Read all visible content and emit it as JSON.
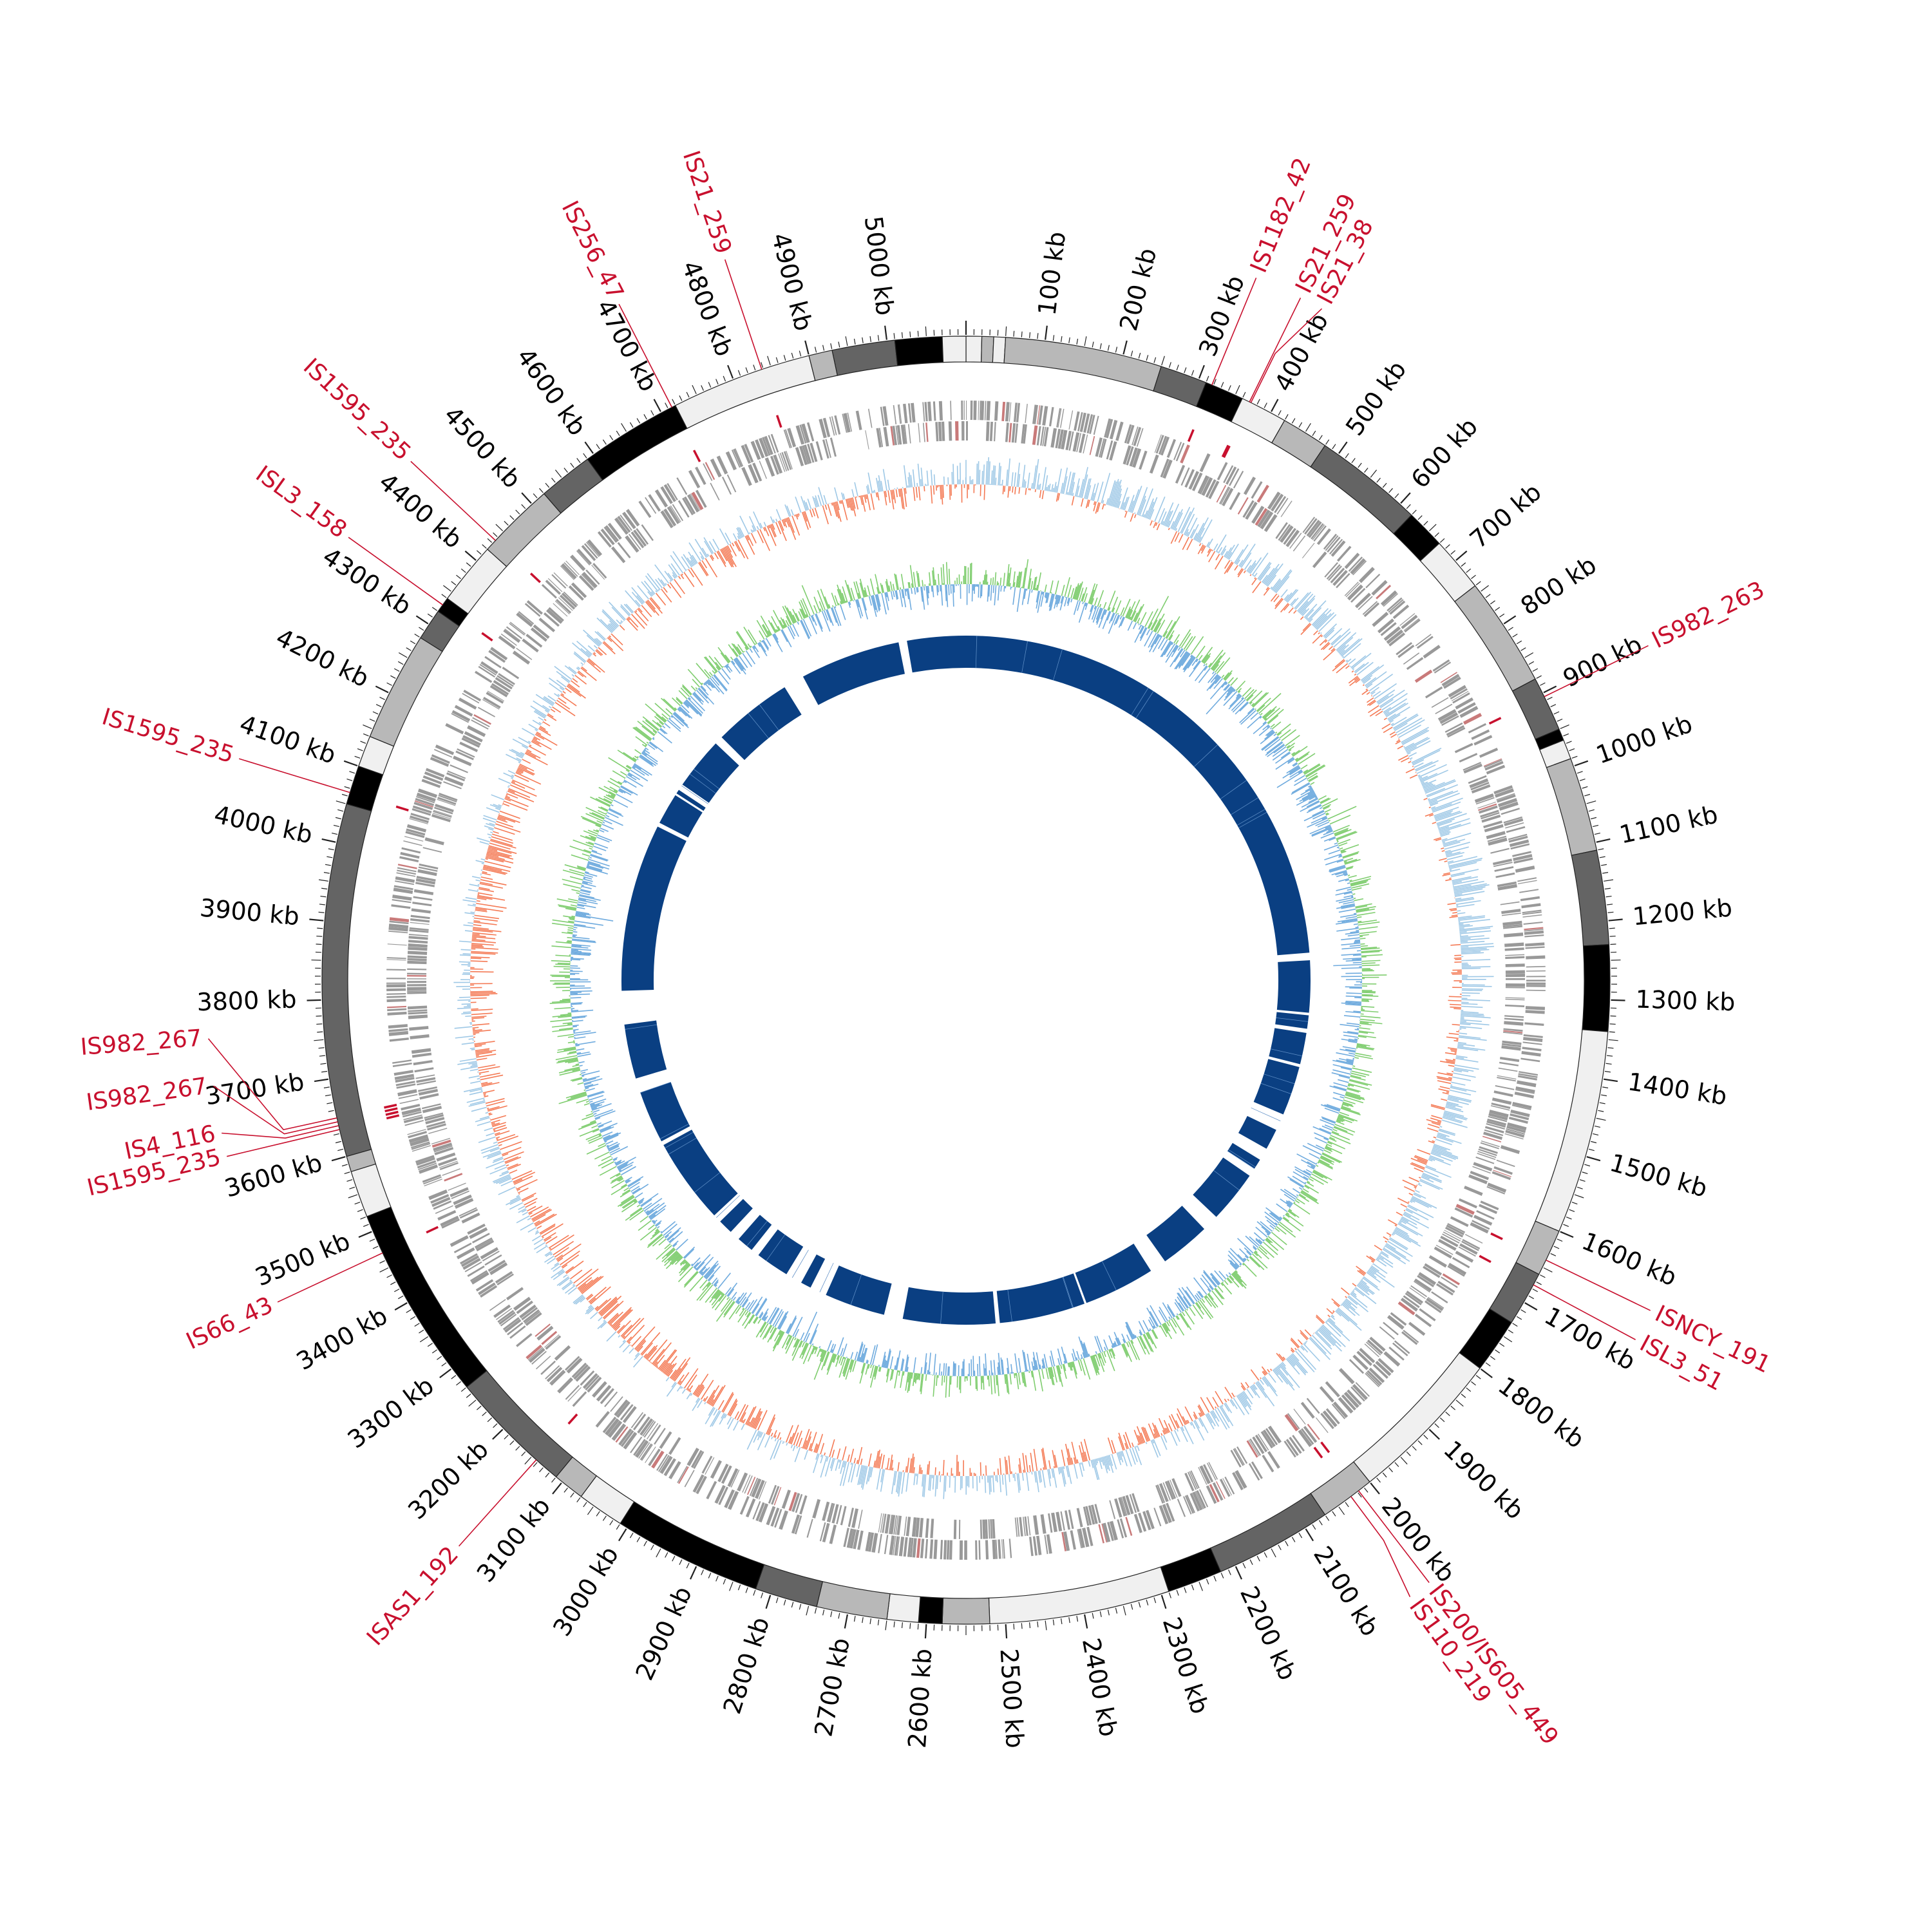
{
  "genome": {
    "total_kb": 5100,
    "scale_labels": [
      "100 kb",
      "200 kb",
      "300 kb",
      "400 kb",
      "500 kb",
      "600 kb",
      "700 kb",
      "800 kb",
      "900 kb",
      "1000 kb",
      "1100 kb",
      "1200 kb",
      "1300 kb",
      "1400 kb",
      "1500 kb",
      "1600 kb",
      "1700 kb",
      "1800 kb",
      "1900 kb",
      "2000 kb",
      "2100 kb",
      "2200 kb",
      "2300 kb",
      "2400 kb",
      "2500 kb",
      "2600 kb",
      "2700 kb",
      "2800 kb",
      "2900 kb",
      "3000 kb",
      "3100 kb",
      "3200 kb",
      "3300 kb",
      "3400 kb",
      "3500 kb",
      "3600 kb",
      "3700 kb",
      "3800 kb",
      "3900 kb",
      "4000 kb",
      "4100 kb",
      "4200 kb",
      "4300 kb",
      "4400 kb",
      "4500 kb",
      "4600 kb",
      "4700 kb",
      "4800 kb",
      "4900 kb",
      "5000 kb"
    ],
    "ideogram_blocks": [
      {
        "start": 0,
        "end": 20,
        "shade": "#f0f0f0"
      },
      {
        "start": 20,
        "end": 35,
        "shade": "#b8b8b8"
      },
      {
        "start": 35,
        "end": 50,
        "shade": "#f0f0f0"
      },
      {
        "start": 50,
        "end": 250,
        "shade": "#b8b8b8"
      },
      {
        "start": 250,
        "end": 310,
        "shade": "#646464"
      },
      {
        "start": 310,
        "end": 360,
        "shade": "#000000"
      },
      {
        "start": 360,
        "end": 420,
        "shade": "#f0f0f0"
      },
      {
        "start": 420,
        "end": 480,
        "shade": "#b8b8b8"
      },
      {
        "start": 480,
        "end": 620,
        "shade": "#646464"
      },
      {
        "start": 620,
        "end": 670,
        "shade": "#000000"
      },
      {
        "start": 670,
        "end": 740,
        "shade": "#f0f0f0"
      },
      {
        "start": 740,
        "end": 880,
        "shade": "#b8b8b8"
      },
      {
        "start": 880,
        "end": 950,
        "shade": "#646464"
      },
      {
        "start": 950,
        "end": 965,
        "shade": "#000000"
      },
      {
        "start": 965,
        "end": 990,
        "shade": "#f0f0f0"
      },
      {
        "start": 990,
        "end": 1110,
        "shade": "#b8b8b8"
      },
      {
        "start": 1110,
        "end": 1230,
        "shade": "#646464"
      },
      {
        "start": 1230,
        "end": 1340,
        "shade": "#000000"
      },
      {
        "start": 1340,
        "end": 1600,
        "shade": "#f0f0f0"
      },
      {
        "start": 1600,
        "end": 1660,
        "shade": "#b8b8b8"
      },
      {
        "start": 1660,
        "end": 1730,
        "shade": "#646464"
      },
      {
        "start": 1730,
        "end": 1800,
        "shade": "#000000"
      },
      {
        "start": 1800,
        "end": 2000,
        "shade": "#f0f0f0"
      },
      {
        "start": 2000,
        "end": 2070,
        "shade": "#b8b8b8"
      },
      {
        "start": 2070,
        "end": 2220,
        "shade": "#646464"
      },
      {
        "start": 2220,
        "end": 2290,
        "shade": "#000000"
      },
      {
        "start": 2290,
        "end": 2520,
        "shade": "#f0f0f0"
      },
      {
        "start": 2520,
        "end": 2580,
        "shade": "#b8b8b8"
      },
      {
        "start": 2580,
        "end": 2610,
        "shade": "#000000"
      },
      {
        "start": 2610,
        "end": 2650,
        "shade": "#f0f0f0"
      },
      {
        "start": 2650,
        "end": 2740,
        "shade": "#b8b8b8"
      },
      {
        "start": 2740,
        "end": 2820,
        "shade": "#646464"
      },
      {
        "start": 2820,
        "end": 3010,
        "shade": "#000000"
      },
      {
        "start": 3010,
        "end": 3070,
        "shade": "#f0f0f0"
      },
      {
        "start": 3070,
        "end": 3110,
        "shade": "#b8b8b8"
      },
      {
        "start": 3110,
        "end": 3270,
        "shade": "#646464"
      },
      {
        "start": 3270,
        "end": 3520,
        "shade": "#000000"
      },
      {
        "start": 3520,
        "end": 3580,
        "shade": "#f0f0f0"
      },
      {
        "start": 3580,
        "end": 3600,
        "shade": "#b8b8b8"
      },
      {
        "start": 3600,
        "end": 4050,
        "shade": "#646464"
      },
      {
        "start": 4050,
        "end": 4100,
        "shade": "#000000"
      },
      {
        "start": 4100,
        "end": 4140,
        "shade": "#f0f0f0"
      },
      {
        "start": 4140,
        "end": 4280,
        "shade": "#b8b8b8"
      },
      {
        "start": 4280,
        "end": 4320,
        "shade": "#646464"
      },
      {
        "start": 4320,
        "end": 4340,
        "shade": "#000000"
      },
      {
        "start": 4340,
        "end": 4420,
        "shade": "#f0f0f0"
      },
      {
        "start": 4420,
        "end": 4520,
        "shade": "#b8b8b8"
      },
      {
        "start": 4520,
        "end": 4590,
        "shade": "#646464"
      },
      {
        "start": 4590,
        "end": 4720,
        "shade": "#000000"
      },
      {
        "start": 4720,
        "end": 4900,
        "shade": "#f0f0f0"
      },
      {
        "start": 4900,
        "end": 4930,
        "shade": "#b8b8b8"
      },
      {
        "start": 4930,
        "end": 5010,
        "shade": "#646464"
      },
      {
        "start": 5010,
        "end": 5070,
        "shade": "#000000"
      },
      {
        "start": 5070,
        "end": 5100,
        "shade": "#f0f0f0"
      }
    ]
  },
  "insertion_sequences": [
    {
      "name": "IS1182_42",
      "kb": 318
    },
    {
      "name": "IS21_259",
      "kb": 370
    },
    {
      "name": "IS21_38",
      "kb": 372
    },
    {
      "name": "IS982_263",
      "kb": 905
    },
    {
      "name": "ISNCY_191",
      "kb": 1640
    },
    {
      "name": "ISL3_51",
      "kb": 1675
    },
    {
      "name": "IS200/IS605_449",
      "kb": 2018
    },
    {
      "name": "IS110_219",
      "kb": 2030
    },
    {
      "name": "ISAS1_192",
      "kb": 3143
    },
    {
      "name": "IS66_43",
      "kb": 3470
    },
    {
      "name": "IS1595_235",
      "kb": 3635
    },
    {
      "name": "IS4_116",
      "kb": 3640
    },
    {
      "name": "IS982_267",
      "kb": 3645
    },
    {
      "name": "IS982_267",
      "kb": 3650
    },
    {
      "name": "IS1595_235",
      "kb": 4065
    },
    {
      "name": "ISL3_158",
      "kb": 4330
    },
    {
      "name": "IS1595_235",
      "kb": 4435
    },
    {
      "name": "IS256_47",
      "kb": 4715
    },
    {
      "name": "IS21_259",
      "kb": 4838
    }
  ],
  "colors": {
    "is_marker": "#c8102e",
    "gene_ticks": "#999999",
    "gc_skew_positive": "#9ec8e6",
    "gc_skew_negative": "#f47a55",
    "gc_content_positive": "#7fcd6f",
    "gc_content_negative": "#6fabde",
    "inner_blocks": "#0a3f82",
    "ideogram_outline": "#222222"
  },
  "inner_gaps": [
    {
      "start": 1210,
      "end": 1228
    },
    {
      "start": 1352,
      "end": 1358
    },
    {
      "start": 1390,
      "end": 1400
    },
    {
      "start": 1475,
      "end": 1482
    },
    {
      "start": 1600,
      "end": 1640
    },
    {
      "start": 1690,
      "end": 1720
    },
    {
      "start": 1745,
      "end": 1765
    },
    {
      "start": 1890,
      "end": 1930
    },
    {
      "start": 2050,
      "end": 2090
    },
    {
      "start": 2260,
      "end": 2265
    },
    {
      "start": 2470,
      "end": 2480
    },
    {
      "start": 2700,
      "end": 2745
    },
    {
      "start": 2890,
      "end": 2930
    },
    {
      "start": 2955,
      "end": 2995
    },
    {
      "start": 3075,
      "end": 3095
    },
    {
      "start": 3135,
      "end": 3160
    },
    {
      "start": 3195,
      "end": 3215
    },
    {
      "start": 3420,
      "end": 3430
    },
    {
      "start": 3555,
      "end": 3590
    },
    {
      "start": 3720,
      "end": 3800
    },
    {
      "start": 4200,
      "end": 4210
    },
    {
      "start": 4285,
      "end": 4290
    },
    {
      "start": 4300,
      "end": 4315
    },
    {
      "start": 4440,
      "end": 4460
    },
    {
      "start": 4650,
      "end": 4700
    },
    {
      "start": 4940,
      "end": 4960
    }
  ]
}
